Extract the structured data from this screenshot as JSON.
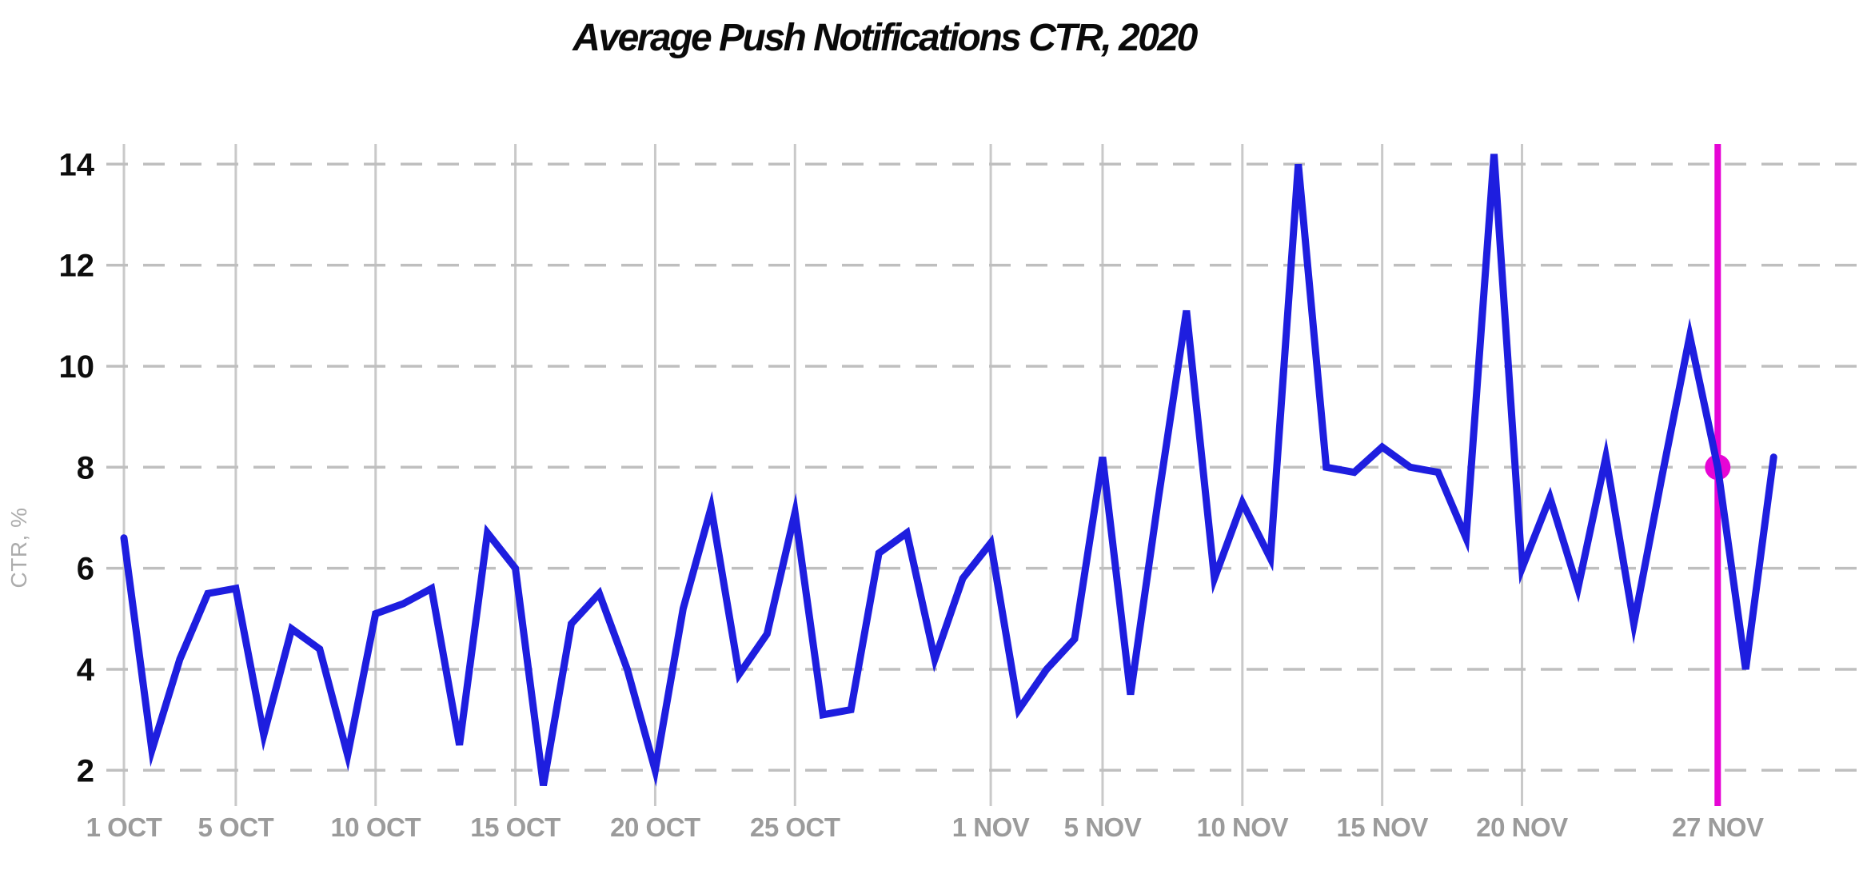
{
  "title": "Average Push Notifications CTR, 2020",
  "y_axis": {
    "label": "CTR, %",
    "ticks": [
      2,
      4,
      6,
      8,
      10,
      12,
      14
    ],
    "min": 2,
    "max": 14
  },
  "x_axis": {
    "ticks": [
      {
        "label": "1 OCT",
        "day": 1
      },
      {
        "label": "5 OCT",
        "day": 5
      },
      {
        "label": "10 OCT",
        "day": 10
      },
      {
        "label": "15 OCT",
        "day": 15
      },
      {
        "label": "20 OCT",
        "day": 20
      },
      {
        "label": "25 OCT",
        "day": 25
      },
      {
        "label": "1 NOV",
        "day": 32
      },
      {
        "label": "5 NOV",
        "day": 36
      },
      {
        "label": "10 NOV",
        "day": 41
      },
      {
        "label": "15 NOV",
        "day": 46
      },
      {
        "label": "20 NOV",
        "day": 51
      },
      {
        "label": "27 NOV",
        "day": 58,
        "highlight": true
      }
    ]
  },
  "highlight": {
    "label": "27 NOV",
    "day": 58,
    "value": 8.0
  },
  "colors": {
    "line": "#1e1edf",
    "highlight": "#e605d5",
    "grid_vertical": "#c9c9c9",
    "grid_dashed": "#bfbfbf",
    "x_label": "#9b9b9b",
    "x_label_highlight": "#d400cc",
    "y_label": "#0d0d0d",
    "axis_label": "#acacac",
    "title": "#0a0a0a"
  },
  "chart_data": {
    "type": "line",
    "title": "Average Push Notifications CTR, 2020",
    "xlabel": "",
    "ylabel": "CTR, %",
    "ylim": [
      2,
      14
    ],
    "grid": "horizontal-dashed and vertical-solid at labeled ticks",
    "legend": "none",
    "x": [
      "1 OCT",
      "2 OCT",
      "3 OCT",
      "4 OCT",
      "5 OCT",
      "6 OCT",
      "7 OCT",
      "8 OCT",
      "9 OCT",
      "10 OCT",
      "11 OCT",
      "12 OCT",
      "13 OCT",
      "14 OCT",
      "15 OCT",
      "16 OCT",
      "17 OCT",
      "18 OCT",
      "19 OCT",
      "20 OCT",
      "21 OCT",
      "22 OCT",
      "23 OCT",
      "24 OCT",
      "25 OCT",
      "26 OCT",
      "27 OCT",
      "28 OCT",
      "29 OCT",
      "30 OCT",
      "31 OCT",
      "1 NOV",
      "2 NOV",
      "3 NOV",
      "4 NOV",
      "5 NOV",
      "6 NOV",
      "7 NOV",
      "8 NOV",
      "9 NOV",
      "10 NOV",
      "11 NOV",
      "12 NOV",
      "13 NOV",
      "14 NOV",
      "15 NOV",
      "16 NOV",
      "17 NOV",
      "18 NOV",
      "19 NOV",
      "20 NOV",
      "21 NOV",
      "22 NOV",
      "23 NOV",
      "24 NOV",
      "25 NOV",
      "26 NOV",
      "27 NOV",
      "28 NOV",
      "29 NOV"
    ],
    "values": [
      6.6,
      2.4,
      4.2,
      5.5,
      5.6,
      2.7,
      4.8,
      4.4,
      2.3,
      5.1,
      5.3,
      5.6,
      2.5,
      6.7,
      6.0,
      1.7,
      4.9,
      5.5,
      4.0,
      2.0,
      5.2,
      7.2,
      3.9,
      4.7,
      7.1,
      3.1,
      3.2,
      6.3,
      6.7,
      4.2,
      5.8,
      6.5,
      3.2,
      4.0,
      4.6,
      8.2,
      3.5,
      7.4,
      11.1,
      5.8,
      7.3,
      6.2,
      14.0,
      8.0,
      7.9,
      8.4,
      8.0,
      7.9,
      6.6,
      14.2,
      6.0,
      7.4,
      5.6,
      8.2,
      4.9,
      7.8,
      10.6,
      8.0,
      4.0,
      8.2
    ],
    "annotations": [
      {
        "type": "vertical-line",
        "x": "27 NOV",
        "color": "#e605d5"
      },
      {
        "type": "point-marker",
        "x": "27 NOV",
        "y": 8.0,
        "color": "#e605d5"
      }
    ]
  }
}
